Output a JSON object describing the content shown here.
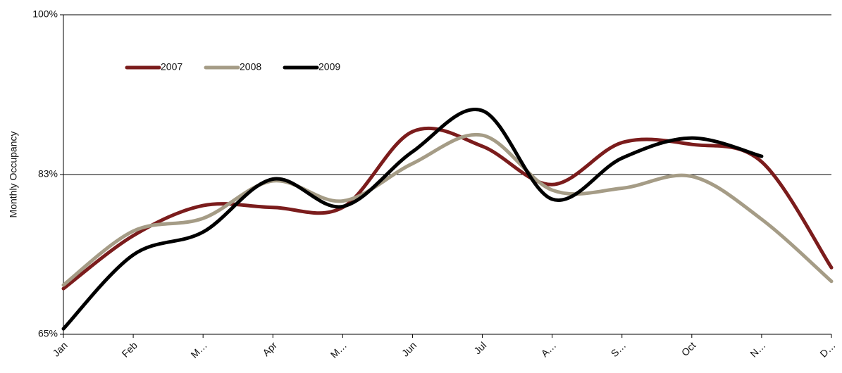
{
  "chart_data": {
    "type": "line",
    "y_label": "Monthly Occupancy",
    "categories": [
      "Jan",
      "Feb",
      "M…",
      "Apr",
      "M…",
      "Jun",
      "Jul",
      "A…",
      "S…",
      "Oct",
      "N…",
      "D…"
    ],
    "series": [
      {
        "name": "2007",
        "color": "#7b1c1c",
        "values": [
          70.0,
          75.8,
          79.1,
          78.9,
          78.9,
          87.2,
          85.6,
          81.4,
          86.0,
          85.8,
          83.9,
          72.3
        ]
      },
      {
        "name": "2008",
        "color": "#a59c86",
        "values": [
          70.4,
          76.3,
          77.7,
          81.8,
          79.6,
          83.7,
          86.8,
          80.8,
          81.0,
          82.3,
          77.6,
          70.8
        ]
      },
      {
        "name": "2009",
        "color": "#000000",
        "values": [
          65.6,
          73.7,
          76.2,
          82.0,
          79.0,
          85.0,
          89.5,
          79.8,
          84.3,
          86.5,
          84.5,
          null
        ]
      }
    ],
    "ylim": [
      65,
      100
    ],
    "yticks": [
      {
        "value": 65,
        "label": "65%"
      },
      {
        "value": 82.5,
        "label": "83%"
      },
      {
        "value": 100,
        "label": "100%"
      }
    ],
    "grid": true,
    "legend": "top-left"
  }
}
